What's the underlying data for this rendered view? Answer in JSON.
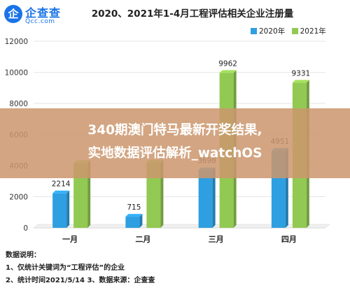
{
  "logo": {
    "mark": "企",
    "name": "企查查",
    "url": "Qcc.com"
  },
  "chart_data": {
    "type": "bar",
    "title": "2020、2021年1-4月工程评估相关企业注册量",
    "categories": [
      "一月",
      "二月",
      "三月",
      "四月"
    ],
    "series": [
      {
        "name": "2020年",
        "values": [
          2214,
          715,
          3698,
          4951
        ],
        "labels": [
          "2214",
          "715",
          "3698",
          "4951"
        ],
        "color": "#2e9fe0"
      },
      {
        "name": "2021年",
        "values": [
          4150,
          4200,
          9962,
          9331
        ],
        "labels": [
          "",
          "",
          "9962",
          "9331"
        ],
        "color": "#92c952"
      }
    ],
    "yticks": [
      "0",
      "2000",
      "4000",
      "6000",
      "8000",
      "10000",
      "12000"
    ],
    "ylim": [
      0,
      12000
    ],
    "grid": true,
    "legend_position": "top-right"
  },
  "notes": {
    "heading": "数据说明：",
    "line1": "1、仅统计关键词为“工程评估”的企业",
    "line2": "2、统计时间2021/5/14   3、数据来源：企查查"
  },
  "overlay": {
    "line1": "340期澳门特马最新开奖结果,",
    "line2": "实地数据评估解析_watchOS"
  }
}
